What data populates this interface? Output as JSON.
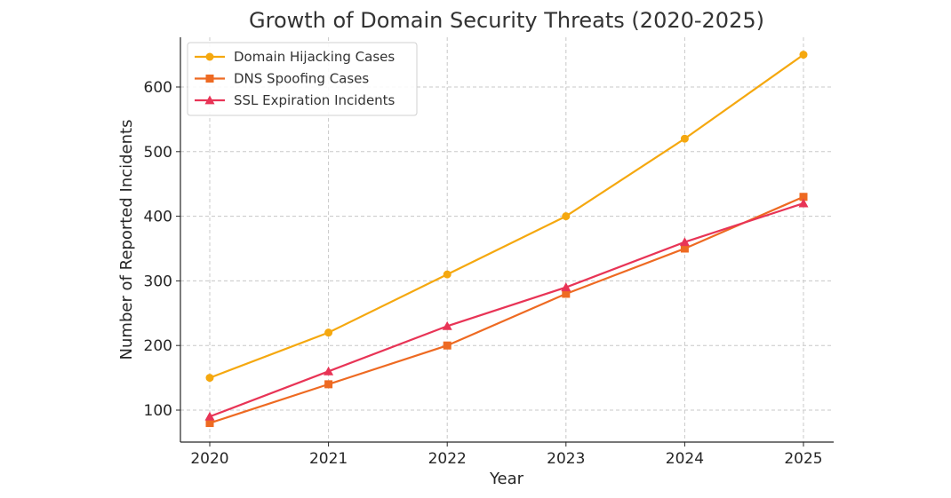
{
  "chart_data": {
    "type": "line",
    "title": "Growth of Domain Security Threats (2020-2025)",
    "xlabel": "Year",
    "ylabel": "Number of Reported Incidents",
    "categories": [
      "2020",
      "2021",
      "2022",
      "2023",
      "2024",
      "2025"
    ],
    "yticks": [
      "100",
      "200",
      "300",
      "400",
      "500",
      "600"
    ],
    "ylim": [
      50,
      676
    ],
    "grid": true,
    "legend_position": "top-left",
    "series": [
      {
        "name": "Domain Hijacking Cases",
        "marker": "circle",
        "color": "#f5a80f",
        "values": [
          150,
          220,
          310,
          400,
          520,
          650
        ]
      },
      {
        "name": "DNS Spoofing Cases",
        "marker": "square",
        "color": "#ee6a22",
        "values": [
          80,
          140,
          200,
          280,
          350,
          430
        ]
      },
      {
        "name": "SSL Expiration Incidents",
        "marker": "triangle",
        "color": "#e83456",
        "values": [
          90,
          160,
          230,
          290,
          360,
          420
        ]
      }
    ]
  }
}
